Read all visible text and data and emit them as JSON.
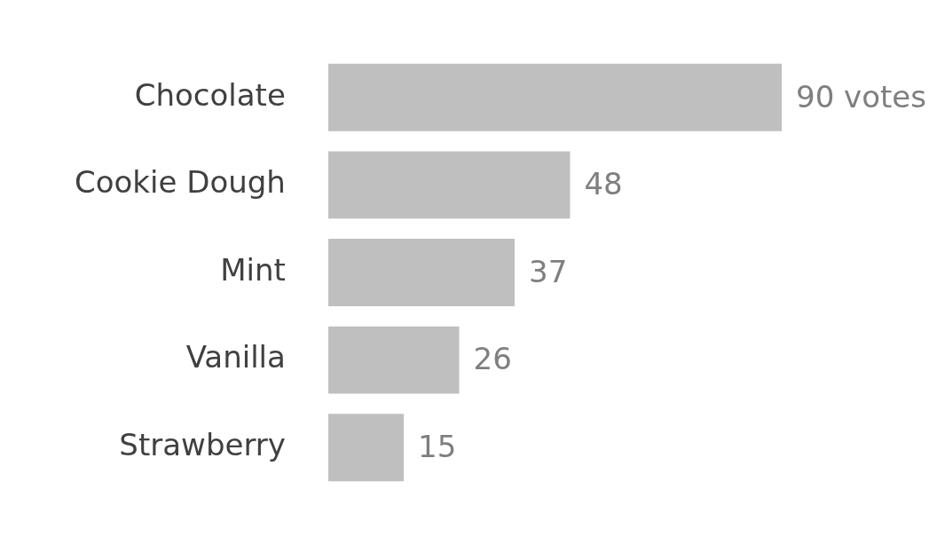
{
  "chart_data": {
    "type": "bar",
    "orientation": "horizontal",
    "categories": [
      "Chocolate",
      "Cookie Dough",
      "Mint",
      "Vanilla",
      "Strawberry"
    ],
    "values": [
      90,
      48,
      37,
      26,
      15
    ],
    "value_labels": [
      "90 votes",
      "48",
      "37",
      "26",
      "15"
    ],
    "color": "#bfbfbf",
    "legend": false
  }
}
